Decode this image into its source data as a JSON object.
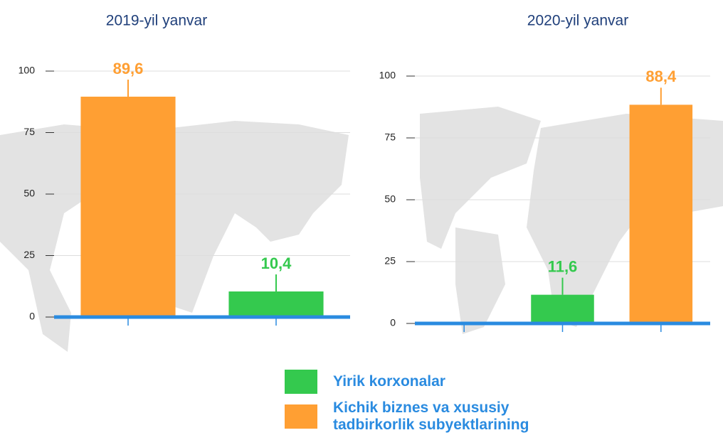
{
  "chart_data": [
    {
      "type": "bar",
      "title": "2019-yil yanvar",
      "categories": [
        null,
        null
      ],
      "series": [
        {
          "name": "Yirik korxonalar",
          "color": "#34c94e",
          "values": [
            null,
            10.4
          ],
          "value_labels": [
            null,
            "10,4"
          ]
        },
        {
          "name": "Kichik biznes va xususiy tadbirkorlik subyektlarining",
          "color": "#ff9f33",
          "values": [
            89.6,
            null
          ],
          "value_labels": [
            "89,6",
            null
          ]
        }
      ],
      "ylim": [
        0,
        100
      ],
      "yticks": [
        0,
        25,
        50,
        75,
        100
      ],
      "grid": true
    },
    {
      "type": "bar",
      "title": "2020-yil yanvar",
      "categories": [
        null,
        null,
        null
      ],
      "series": [
        {
          "color": "#34c94e",
          "values": [
            null,
            11.6,
            null
          ],
          "value_labels": [
            null,
            "11,6",
            null
          ]
        },
        {
          "color": "#ff9f33",
          "values": [
            null,
            null,
            88.4
          ],
          "value_labels": [
            null,
            null,
            "88,4"
          ]
        }
      ],
      "ylim": [
        0,
        100
      ],
      "yticks": [
        0,
        25,
        50,
        75,
        100
      ],
      "grid": true
    }
  ]
}
